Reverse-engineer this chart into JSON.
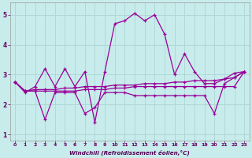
{
  "xlabel": "Windchill (Refroidissement éolien,°C)",
  "background_color": "#c8ecec",
  "line_color": "#990099",
  "grid_color": "#b0d8d8",
  "xlim": [
    -0.5,
    23.5
  ],
  "ylim": [
    0.8,
    5.4
  ],
  "xticks": [
    0,
    1,
    2,
    3,
    4,
    5,
    6,
    7,
    8,
    9,
    10,
    11,
    12,
    13,
    14,
    15,
    16,
    17,
    18,
    19,
    20,
    21,
    22,
    23
  ],
  "yticks": [
    1,
    2,
    3,
    4,
    5
  ],
  "line1_x": [
    0,
    1,
    2,
    3,
    4,
    5,
    6,
    7,
    8,
    9,
    10,
    11,
    12,
    13,
    14,
    15,
    16,
    17,
    18,
    19,
    20,
    21,
    22,
    23
  ],
  "line1_y": [
    2.75,
    2.4,
    2.6,
    3.2,
    2.6,
    3.2,
    2.6,
    3.1,
    1.4,
    3.1,
    4.7,
    4.8,
    5.05,
    4.8,
    5.0,
    4.35,
    3.0,
    3.7,
    3.1,
    2.7,
    2.7,
    2.85,
    3.05,
    3.1
  ],
  "line2_x": [
    0,
    1,
    2,
    3,
    4,
    5,
    6,
    7,
    8,
    9,
    10,
    11,
    12,
    13,
    14,
    15,
    16,
    17,
    18,
    19,
    20,
    21,
    22,
    23
  ],
  "line2_y": [
    2.75,
    2.45,
    2.5,
    2.5,
    2.5,
    2.55,
    2.55,
    2.6,
    2.6,
    2.6,
    2.65,
    2.65,
    2.65,
    2.7,
    2.7,
    2.7,
    2.75,
    2.75,
    2.8,
    2.8,
    2.8,
    2.85,
    2.9,
    3.1
  ],
  "line3_x": [
    0,
    1,
    2,
    3,
    4,
    5,
    6,
    7,
    8,
    9,
    10,
    11,
    12,
    13,
    14,
    15,
    16,
    17,
    18,
    19,
    20,
    21,
    22,
    23
  ],
  "line3_y": [
    2.75,
    2.45,
    2.45,
    1.5,
    2.4,
    2.4,
    2.4,
    1.7,
    1.9,
    2.4,
    2.4,
    2.4,
    2.3,
    2.3,
    2.3,
    2.3,
    2.3,
    2.3,
    2.3,
    2.3,
    1.7,
    2.7,
    2.9,
    3.1
  ],
  "line4_x": [
    0,
    1,
    2,
    3,
    4,
    5,
    6,
    7,
    8,
    9,
    10,
    11,
    12,
    13,
    14,
    15,
    16,
    17,
    18,
    19,
    20,
    21,
    22,
    23
  ],
  "line4_y": [
    2.75,
    2.45,
    2.45,
    2.45,
    2.45,
    2.45,
    2.45,
    2.5,
    2.5,
    2.5,
    2.55,
    2.55,
    2.6,
    2.6,
    2.6,
    2.6,
    2.6,
    2.6,
    2.6,
    2.6,
    2.6,
    2.6,
    2.6,
    3.1
  ]
}
